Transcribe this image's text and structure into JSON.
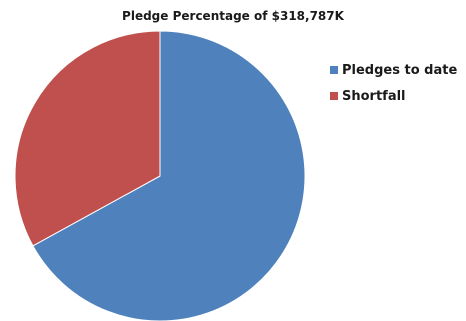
{
  "chart_data": {
    "type": "pie",
    "title": "Pledge Percentage of $318,787K",
    "categories": [
      "Pledges to date",
      "Shortfall"
    ],
    "values": [
      67,
      33
    ],
    "colors": [
      "#4f81bd",
      "#c0504d"
    ],
    "start": "12 o'clock",
    "direction": "clockwise",
    "legend_placement": "right"
  }
}
